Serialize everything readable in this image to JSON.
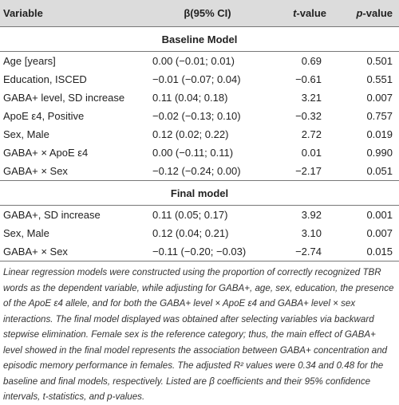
{
  "header": {
    "variable": "Variable",
    "beta": "β(95% CI)",
    "t_prefix": "t",
    "t_suffix": "-value",
    "p_prefix": "p",
    "p_suffix": "-value"
  },
  "sections": {
    "baseline": "Baseline Model",
    "final": "Final model"
  },
  "baseline_rows": [
    {
      "variable": "Age [years]",
      "beta": "0.00 (−0.01; 0.01)",
      "t": "0.69",
      "p": "0.501"
    },
    {
      "variable": "Education, ISCED",
      "beta": "−0.01 (−0.07; 0.04)",
      "t": "−0.61",
      "p": "0.551"
    },
    {
      "variable": "GABA+ level, SD increase",
      "beta": "0.11 (0.04; 0.18)",
      "t": "3.21",
      "p": "0.007"
    },
    {
      "variable": "ApoE ε4, Positive",
      "beta": "−0.02 (−0.13; 0.10)",
      "t": "−0.32",
      "p": "0.757"
    },
    {
      "variable": "Sex, Male",
      "beta": "0.12 (0.02; 0.22)",
      "t": "2.72",
      "p": "0.019"
    },
    {
      "variable": "GABA+ × ApoE ε4",
      "beta": "0.00 (−0.11; 0.11)",
      "t": "0.01",
      "p": "0.990"
    },
    {
      "variable": "GABA+ × Sex",
      "beta": "−0.12 (−0.24; 0.00)",
      "t": "−2.17",
      "p": "0.051"
    }
  ],
  "final_rows": [
    {
      "variable": "GABA+, SD increase",
      "beta": "0.11 (0.05; 0.17)",
      "t": "3.92",
      "p": "0.001"
    },
    {
      "variable": "Sex, Male",
      "beta": "0.12 (0.04; 0.21)",
      "t": "3.10",
      "p": "0.007"
    },
    {
      "variable": "GABA+ × Sex",
      "beta": "−0.11 (−0.20; −0.03)",
      "t": "−2.74",
      "p": "0.015"
    }
  ],
  "footnote": "Linear regression models were constructed using the proportion of correctly recognized TBR words as the dependent variable, while adjusting for GABA+, age, sex, education, the presence of the ApoE ε4 allele, and for both the GABA+ level × ApoE ε4 and GABA+ level × sex interactions. The final model displayed was obtained after selecting variables via backward stepwise elimination. Female sex is the reference category; thus, the main effect of GABA+ level showed in the final model represents the association between GABA+ concentration and episodic memory performance in females. The adjusted R² values were 0.34 and 0.48 for the baseline and final models, respectively. Listed are β coefficients and their 95% confidence intervals, t-statistics, and p-values."
}
